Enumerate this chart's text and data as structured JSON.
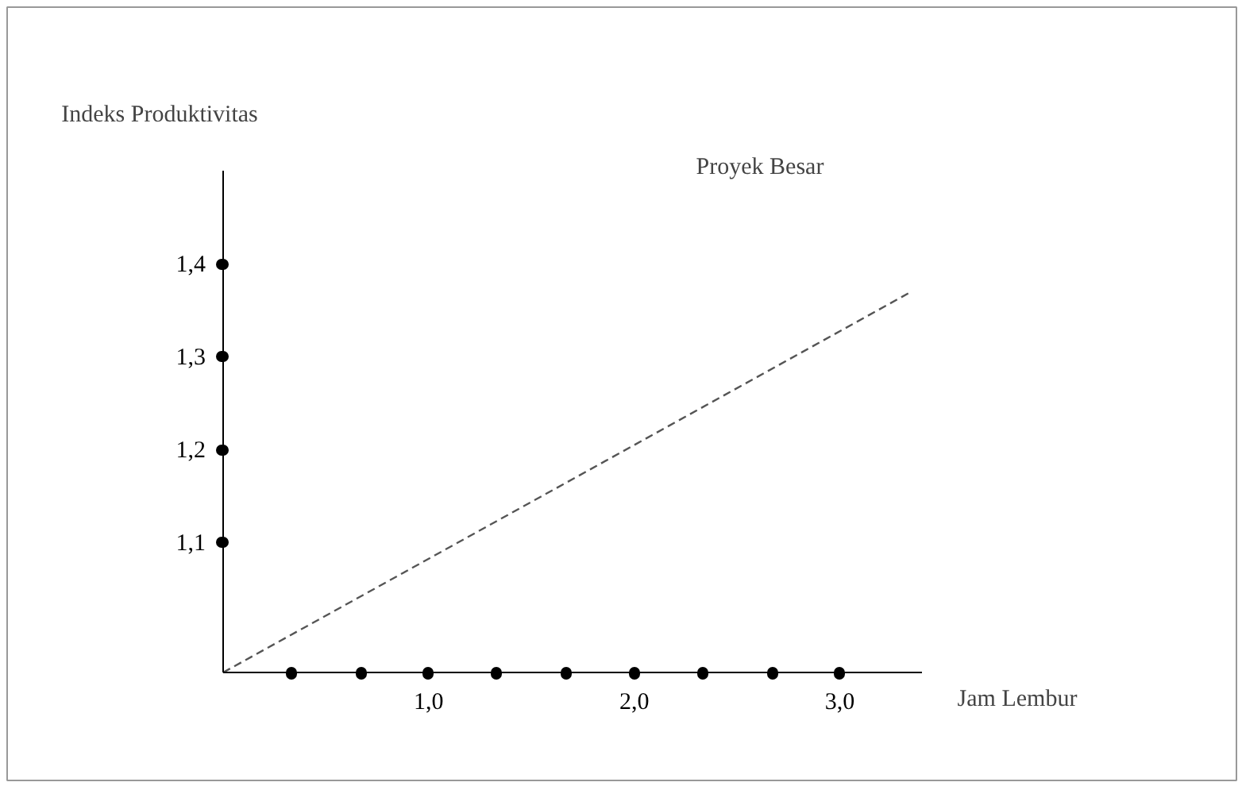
{
  "chart_data": {
    "type": "line",
    "title": "Proyek Besar",
    "xlabel": "Jam Lembur",
    "ylabel": "Indeks Produktivitas",
    "x": [
      0,
      3.35
    ],
    "series": [
      {
        "color": "#555555",
        "values": [
          0.96,
          1.37
        ]
      }
    ],
    "line_style": "dashed",
    "marker": "none",
    "grid": false,
    "xlim": [
      0,
      3.4
    ],
    "ylim": [
      0.96,
      1.5
    ],
    "xticks": [
      {
        "value": 0.33,
        "label": null
      },
      {
        "value": 0.67,
        "label": null
      },
      {
        "value": 1.0,
        "label": "1,0"
      },
      {
        "value": 1.33,
        "label": null
      },
      {
        "value": 1.67,
        "label": null
      },
      {
        "value": 2.0,
        "label": "2,0"
      },
      {
        "value": 2.33,
        "label": null
      },
      {
        "value": 2.67,
        "label": null
      },
      {
        "value": 3.0,
        "label": "3,0"
      }
    ],
    "yticks": [
      {
        "value": 1.1,
        "label": "1,1"
      },
      {
        "value": 1.2,
        "label": "1,2"
      },
      {
        "value": 1.3,
        "label": "1,3"
      },
      {
        "value": 1.4,
        "label": "1,4"
      }
    ]
  }
}
